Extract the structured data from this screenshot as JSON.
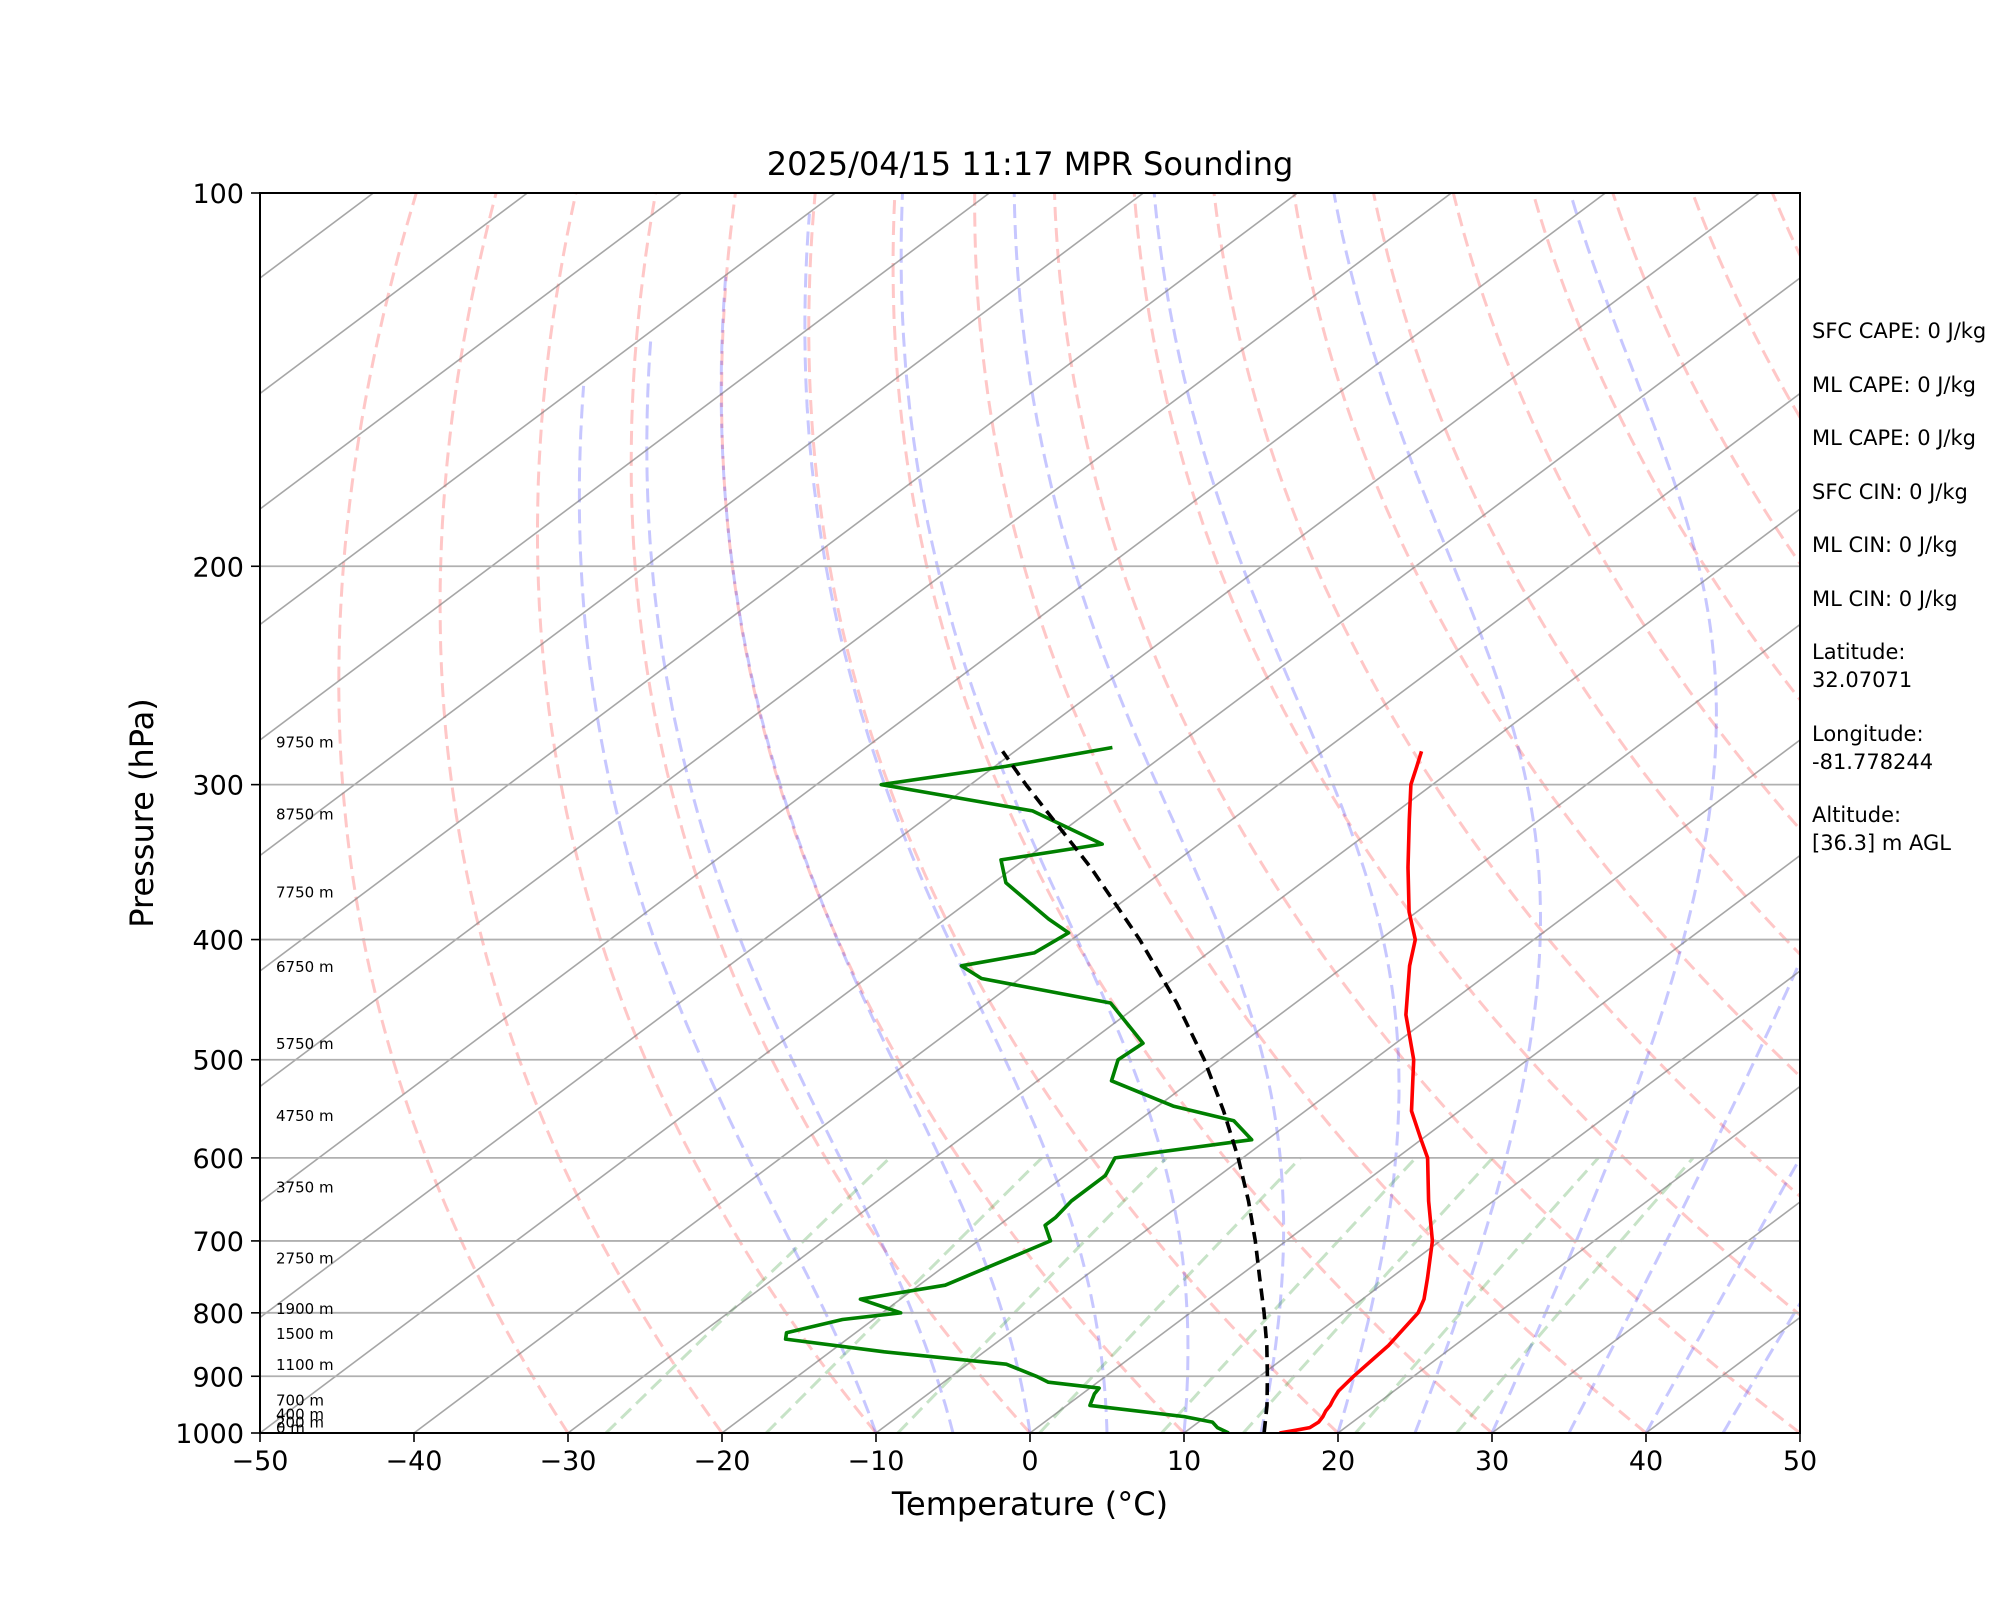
{
  "chart_data": {
    "type": "line",
    "title": "2025/04/15 11:17 MPR Sounding",
    "xlabel": "Temperature (°C)",
    "ylabel": "Pressure (hPa)",
    "xlim": [
      -50,
      50
    ],
    "ylim": [
      1000,
      100
    ],
    "y_scale": "log",
    "skew": true,
    "grid": true,
    "x_ticks": [
      -50,
      -40,
      -30,
      -20,
      -10,
      0,
      10,
      20,
      30,
      40,
      50
    ],
    "x_tick_labels": [
      "−50",
      "−40",
      "−30",
      "−20",
      "−10",
      "0",
      "10",
      "20",
      "30",
      "40",
      "50"
    ],
    "y_ticks": [
      1000,
      900,
      800,
      700,
      600,
      500,
      400,
      300,
      200,
      100
    ],
    "y_tick_labels": [
      "1000",
      "900",
      "800",
      "700",
      "600",
      "500",
      "400",
      "300",
      "200",
      "100"
    ],
    "series": [
      {
        "color": "#ff0000",
        "pressure": [
          1000,
          995,
          990,
          980,
          970,
          960,
          950,
          940,
          925,
          900,
          850,
          800,
          780,
          750,
          700,
          650,
          600,
          580,
          550,
          500,
          460,
          420,
          400,
          380,
          350,
          320,
          300,
          290,
          282
        ],
        "values": [
          16.2,
          17.0,
          17.7,
          17.8,
          17.6,
          17.3,
          17.1,
          16.8,
          16.4,
          16.1,
          15.7,
          14.8,
          14.0,
          12.4,
          9.5,
          5.8,
          2.0,
          0.0,
          -3.1,
          -7.4,
          -11.8,
          -15.8,
          -17.7,
          -20.5,
          -24.4,
          -28.5,
          -31.4,
          -32.6,
          -33.6
        ]
      },
      {
        "color": "#008000",
        "pressure": [
          1000,
          990,
          980,
          970,
          950,
          930,
          920,
          910,
          900,
          880,
          860,
          840,
          830,
          810,
          800,
          780,
          760,
          700,
          680,
          670,
          650,
          620,
          600,
          580,
          560,
          545,
          520,
          500,
          485,
          450,
          430,
          420,
          410,
          395,
          385,
          360,
          345,
          335,
          315,
          300,
          290,
          280
        ],
        "values": [
          12.9,
          11.7,
          10.9,
          8.6,
          1.5,
          0.8,
          0.6,
          -3.2,
          -4.5,
          -7.5,
          -16.5,
          -24.0,
          -24.5,
          -22.0,
          -18.8,
          -22.6,
          -18.3,
          -15.3,
          -17.0,
          -17.0,
          -17.4,
          -17.4,
          -18.3,
          -11.0,
          -13.8,
          -19.0,
          -25.2,
          -26.6,
          -26.4,
          -32.0,
          -42.5,
          -44.9,
          -41.3,
          -40.8,
          -43.3,
          -49.2,
          -51.5,
          -46.3,
          -53.7,
          -65.8,
          -59.3,
          -54.0
        ]
      },
      {
        "color": "#000000",
        "dashed": true,
        "pressure": [
          1000,
          950,
          900,
          850,
          800,
          750,
          700,
          650,
          600,
          550,
          500,
          450,
          400,
          350,
          300,
          282
        ],
        "values": [
          15.2,
          13.0,
          10.5,
          7.8,
          4.8,
          1.5,
          -2.0,
          -5.9,
          -10.3,
          -15.3,
          -21.0,
          -27.7,
          -35.6,
          -45.0,
          -56.4,
          -60.8
        ]
      }
    ],
    "height_labels": [
      "0 m",
      "200 m",
      "400 m",
      "700 m",
      "1100 m",
      "1500 m",
      "1900 m",
      "2750 m",
      "3750 m",
      "4750 m",
      "5750 m",
      "6750 m",
      "7750 m",
      "8750 m",
      "9750 m"
    ],
    "height_label_pressures": [
      1000,
      990,
      975,
      950,
      890,
      840,
      802,
      730,
      640,
      560,
      490,
      425,
      370,
      320,
      280
    ],
    "reference_lines": {
      "dry_adiabat_color": "#ff0000",
      "moist_adiabat_color": "#0000ff",
      "mixing_ratio_color": "#008000",
      "isotherm_color": "#808080"
    },
    "annotations": [
      "SFC CAPE: 0 J/kg",
      "ML CAPE: 0 J/kg",
      "ML CAPE: 0 J/kg",
      "SFC CIN: 0 J/kg",
      "ML CIN: 0 J/kg",
      "ML CIN: 0 J/kg",
      "Latitude:",
      "32.07071",
      "Longitude:",
      "-81.778244",
      "Altitude:",
      "[36.3] m AGL"
    ]
  }
}
